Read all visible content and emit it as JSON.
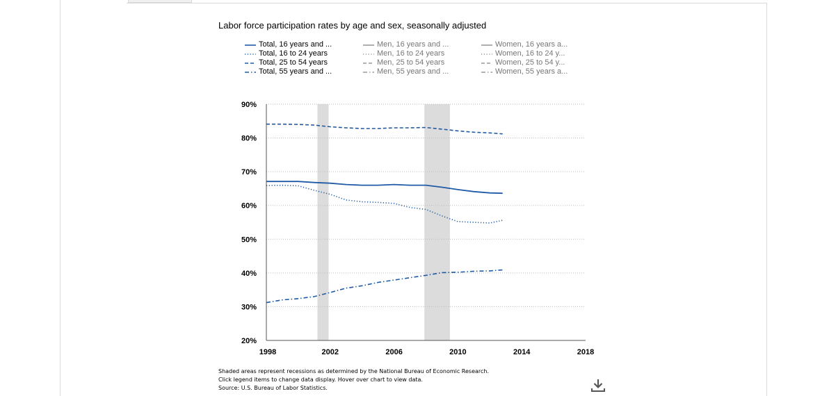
{
  "title": "Labor force participation rates by age and sex, seasonally adjusted",
  "legend": {
    "columns": [
      [
        {
          "label": "Total, 16 years and ...",
          "style": "solid",
          "active": true
        },
        {
          "label": "Total, 16 to 24 years",
          "style": "dotted",
          "active": true
        },
        {
          "label": "Total, 25 to 54 years",
          "style": "dashed",
          "active": true
        },
        {
          "label": "Total, 55 years and ...",
          "style": "dashdot",
          "active": true
        }
      ],
      [
        {
          "label": "Men, 16 years and ...",
          "style": "solid",
          "active": false
        },
        {
          "label": "Men, 16 to 24 years",
          "style": "dotted",
          "active": false
        },
        {
          "label": "Men, 25 to 54 years",
          "style": "dashed",
          "active": false
        },
        {
          "label": "Men, 55 years and ...",
          "style": "dashdot",
          "active": false
        }
      ],
      [
        {
          "label": "Women, 16 years a...",
          "style": "solid",
          "active": false
        },
        {
          "label": "Women, 16 to 24 y...",
          "style": "dotted",
          "active": false
        },
        {
          "label": "Women, 25 to 54 y...",
          "style": "dashed",
          "active": false
        },
        {
          "label": "Women, 55 years a...",
          "style": "dashdot",
          "active": false
        }
      ]
    ]
  },
  "footnote": [
    "Shaded areas represent recessions as determined by the National Bureau of Economic Research.",
    "Click legend items to change data display. Hover over chart to view data.",
    "Source: U.S. Bureau of Labor Statistics."
  ],
  "icons": {
    "download": "download-icon"
  },
  "colors": {
    "series": "#1f5aa6",
    "inactive": "#999999",
    "recession": "#dcdcdc",
    "grid": "#bbbbbb"
  },
  "chart_data": {
    "type": "line",
    "title": "Labor force participation rates by age and sex, seasonally adjusted",
    "xlim": [
      1998,
      2018
    ],
    "ylim": [
      20,
      90
    ],
    "x_ticks": [
      1998,
      2002,
      2006,
      2010,
      2014,
      2018
    ],
    "y_ticks": [
      20,
      30,
      40,
      50,
      60,
      70,
      80,
      90
    ],
    "y_tick_labels": [
      "20%",
      "30%",
      "40%",
      "50%",
      "60%",
      "70%",
      "80%",
      "90%"
    ],
    "grid": "horizontal dotted",
    "recessions": [
      [
        2001.2,
        2001.9
      ],
      [
        2007.9,
        2009.5
      ]
    ],
    "series": [
      {
        "name": "Total, 16 years and ...",
        "style": "solid",
        "x": [
          1998,
          1999,
          2000,
          2001,
          2002,
          2003,
          2004,
          2005,
          2006,
          2007,
          2008,
          2009,
          2010,
          2011,
          2012,
          2012.8
        ],
        "y": [
          67.1,
          67.1,
          67.1,
          66.8,
          66.6,
          66.2,
          66.0,
          66.0,
          66.2,
          66.0,
          66.0,
          65.4,
          64.7,
          64.1,
          63.7,
          63.6
        ]
      },
      {
        "name": "Total, 16 to 24 years",
        "style": "dotted",
        "x": [
          1998,
          1999,
          2000,
          2001,
          2002,
          2003,
          2004,
          2005,
          2006,
          2007,
          2008,
          2009,
          2010,
          2011,
          2012,
          2012.8
        ],
        "y": [
          65.9,
          66.0,
          65.8,
          64.5,
          63.3,
          61.6,
          61.1,
          60.9,
          60.6,
          59.4,
          58.8,
          56.9,
          55.2,
          55.0,
          54.8,
          55.6
        ]
      },
      {
        "name": "Total, 25 to 54 years",
        "style": "dashed",
        "x": [
          1998,
          1999,
          2000,
          2001,
          2002,
          2003,
          2004,
          2005,
          2006,
          2007,
          2008,
          2009,
          2010,
          2011,
          2012,
          2012.8
        ],
        "y": [
          84.1,
          84.1,
          84.0,
          83.8,
          83.3,
          83.0,
          82.8,
          82.8,
          83.0,
          83.0,
          83.1,
          82.6,
          82.1,
          81.7,
          81.5,
          81.2
        ]
      },
      {
        "name": "Total, 55 years and ...",
        "style": "dashdot",
        "x": [
          1998,
          1999,
          2000,
          2001,
          2002,
          2003,
          2004,
          2005,
          2006,
          2007,
          2008,
          2009,
          2010,
          2011,
          2012,
          2012.8
        ],
        "y": [
          31.2,
          32.0,
          32.4,
          33.0,
          34.2,
          35.5,
          36.2,
          37.2,
          37.9,
          38.6,
          39.3,
          40.1,
          40.2,
          40.5,
          40.6,
          40.9
        ]
      }
    ]
  }
}
